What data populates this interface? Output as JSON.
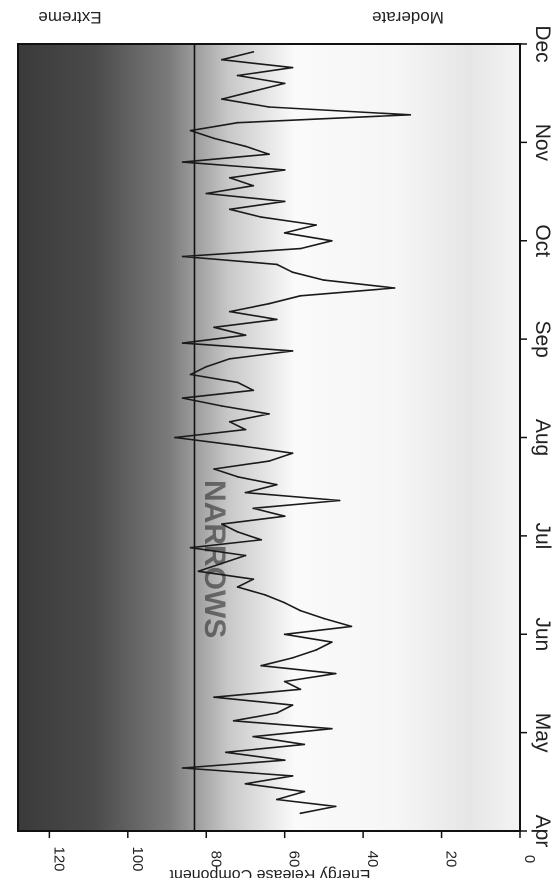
{
  "chart_data": {
    "type": "line",
    "ylabel": "Energy Release Component",
    "xlabel": "",
    "title": "",
    "x_ticks": [
      "Apr",
      "May",
      "Jun",
      "Jul",
      "Aug",
      "Sep",
      "Oct",
      "Nov",
      "Dec"
    ],
    "y_ticks": [
      0,
      20,
      40,
      60,
      80,
      100,
      120
    ],
    "ylim": [
      0,
      128
    ],
    "xlim": [
      0,
      8
    ],
    "background_labels": {
      "top": "Extreme",
      "bottom": "Moderate"
    },
    "reference_line": {
      "value": 83
    },
    "watermark": "NARROWS",
    "orientation": "rotated 90 degrees clockwise",
    "series": [
      {
        "x": [
          0.18,
          0.25,
          0.32,
          0.4,
          0.48,
          0.56,
          0.64,
          0.72,
          0.8,
          0.88,
          0.96,
          1.04,
          1.12,
          1.2,
          1.28,
          1.36,
          1.44,
          1.52,
          1.6,
          1.68,
          1.76,
          1.84,
          1.92,
          2.0,
          2.08,
          2.16,
          2.24,
          2.32,
          2.4,
          2.48,
          2.56,
          2.64,
          2.72,
          2.8,
          2.88,
          2.96,
          3.04,
          3.12,
          3.2,
          3.28,
          3.36,
          3.44,
          3.52,
          3.6,
          3.68,
          3.76,
          3.84,
          3.92,
          4.0,
          4.08,
          4.16,
          4.24,
          4.32,
          4.4,
          4.48,
          4.56,
          4.64,
          4.72,
          4.8,
          4.88,
          4.96,
          5.04,
          5.12,
          5.2,
          5.28,
          5.36,
          5.44,
          5.52,
          5.6,
          5.68,
          5.76,
          5.84,
          5.92,
          6.0,
          6.08,
          6.16,
          6.24,
          6.32,
          6.4,
          6.48,
          6.56,
          6.64,
          6.72,
          6.8,
          6.88,
          6.96,
          7.04,
          7.12,
          7.2,
          7.28,
          7.36,
          7.44,
          7.52,
          7.6,
          7.68,
          7.76,
          7.84,
          7.92
        ],
        "y": [
          56,
          47,
          62,
          55,
          70,
          58,
          86,
          60,
          75,
          55,
          68,
          48,
          73,
          62,
          58,
          78,
          56,
          60,
          47,
          66,
          58,
          52,
          48,
          60,
          43,
          50,
          56,
          60,
          65,
          72,
          68,
          82,
          76,
          70,
          84,
          66,
          72,
          76,
          60,
          68,
          46,
          70,
          62,
          72,
          78,
          64,
          58,
          72,
          88,
          70,
          74,
          64,
          76,
          86,
          68,
          72,
          84,
          80,
          74,
          58,
          86,
          70,
          78,
          62,
          74,
          64,
          56,
          32,
          50,
          58,
          62,
          86,
          56,
          48,
          60,
          52,
          66,
          74,
          60,
          80,
          68,
          74,
          60,
          86,
          64,
          70,
          78,
          84,
          72,
          28,
          64,
          76,
          68,
          60,
          72,
          58,
          76,
          68
        ]
      }
    ]
  }
}
